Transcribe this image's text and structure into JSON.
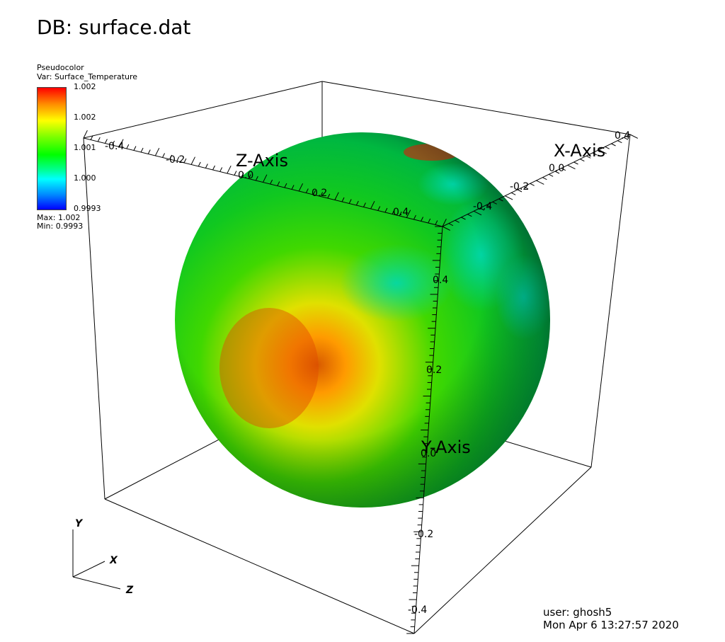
{
  "window": {
    "title": "DB: surface.dat"
  },
  "legend": {
    "plot_type": "Pseudocolor",
    "variable": "Var: Surface_Temperature",
    "ticks": [
      "1.002",
      "1.002",
      "1.001",
      "1.000",
      "0.9993"
    ],
    "max_label": "Max:  1.002",
    "min_label": "Min:  0.9993",
    "colors": [
      "#ff0000",
      "#ffff00",
      "#00ff00",
      "#00ffff",
      "#0000ff"
    ]
  },
  "axes": {
    "z_title": "Z-Axis",
    "x_title": "X-Axis",
    "y_title": "Y-Axis",
    "z_ticks": [
      "-0.4",
      "-0.2",
      "0.0",
      "0.2",
      "0.4"
    ],
    "x_ticks": [
      "0.4",
      "0.0",
      "-0.2",
      "-0.4"
    ],
    "y_ticks": [
      "0.4",
      "0.2",
      "0.0",
      "-0.2",
      "-0.4"
    ]
  },
  "triad": {
    "y": "Y",
    "x": "X",
    "z": "Z"
  },
  "footer": {
    "user": "user: ghosh5",
    "timestamp": "Mon Apr  6 13:27:57 2020"
  }
}
